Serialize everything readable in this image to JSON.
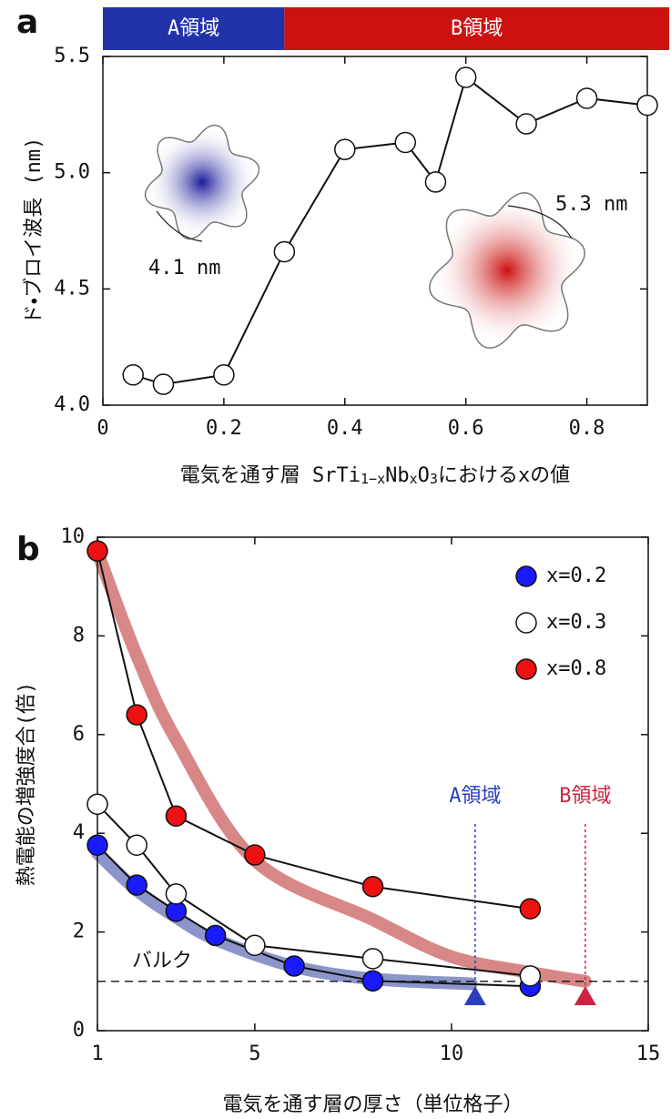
{
  "chart_data": [
    {
      "type": "line",
      "panel_label": "a",
      "ylabel": "ド・ブロイ波長 (nm)",
      "xlabel": [
        "電気を通す層 SrTi",
        "1−x",
        "Nb",
        "x",
        "O",
        "3",
        "におけるxの値"
      ],
      "regions": [
        {
          "label": "A領域",
          "from": 0,
          "to": 0.3,
          "color": "#2233aa"
        },
        {
          "label": "B領域",
          "from": 0.3,
          "to": 0.9,
          "color": "#cc1111"
        }
      ],
      "annotations": [
        "4.1 nm",
        "5.3 nm"
      ],
      "x": [
        0.05,
        0.1,
        0.2,
        0.3,
        0.4,
        0.5,
        0.55,
        0.6,
        0.7,
        0.8,
        0.9
      ],
      "values": [
        4.13,
        4.09,
        4.13,
        4.66,
        5.1,
        5.13,
        4.96,
        5.41,
        5.21,
        5.32,
        5.29
      ],
      "color": "#ffffff",
      "xlim": [
        0,
        0.9
      ],
      "ylim": [
        4,
        5.5
      ],
      "xticks": [
        0,
        0.2,
        0.4,
        0.6,
        0.8
      ],
      "yticks": [
        {
          "value": 4,
          "label": "4.0"
        },
        4.5,
        {
          "value": 5,
          "label": "5.0"
        },
        5.5
      ]
    },
    {
      "type": "line",
      "panel_label": "b",
      "ylabel": "熱電能の増強度合(倍)",
      "xlabel": "電気を通す層の厚さ（単位格子）",
      "series": [
        {
          "name": "x=0.2",
          "color": "#1a1aff",
          "x": [
            1,
            2,
            3,
            4,
            6,
            8,
            12
          ],
          "values": [
            3.76,
            2.95,
            2.42,
            1.93,
            1.31,
            1.01,
            0.9
          ]
        },
        {
          "name": "x=0.3",
          "color": "#ffffff",
          "x": [
            1,
            2,
            3,
            5,
            8,
            12
          ],
          "values": [
            4.59,
            3.76,
            2.77,
            1.73,
            1.46,
            1.11
          ]
        },
        {
          "name": "x=0.8",
          "color": "#ee1111",
          "x": [
            1,
            2,
            3,
            5,
            8,
            12
          ],
          "values": [
            9.72,
            6.4,
            4.35,
            3.56,
            2.92,
            2.47
          ]
        }
      ],
      "fit_curves": [
        {
          "color": "#7f8ac4",
          "x": [
            1,
            2,
            3,
            4,
            6,
            8,
            10.5
          ],
          "values": [
            3.6,
            2.85,
            2.3,
            1.85,
            1.3,
            1.05,
            0.95
          ]
        },
        {
          "color": "#d47a7a",
          "x": [
            1,
            2,
            3,
            5,
            8,
            10,
            12,
            13.4
          ],
          "values": [
            9.7,
            7.6,
            5.9,
            3.45,
            2.25,
            1.5,
            1.18,
            1.0
          ]
        }
      ],
      "reference_line": {
        "value": 1,
        "label": "バルク"
      },
      "markers": [
        {
          "label": "A領域",
          "x": 10.6,
          "y": 0.7,
          "color": "#2a3fbb"
        },
        {
          "label": "B領域",
          "x": 13.4,
          "y": 0.7,
          "color": "#cc2244"
        }
      ],
      "xlim": [
        1,
        15
      ],
      "ylim": [
        0,
        10
      ],
      "xticks": [
        1,
        5,
        10,
        15
      ],
      "yticks": [
        0,
        2,
        4,
        6,
        8,
        10
      ]
    }
  ]
}
